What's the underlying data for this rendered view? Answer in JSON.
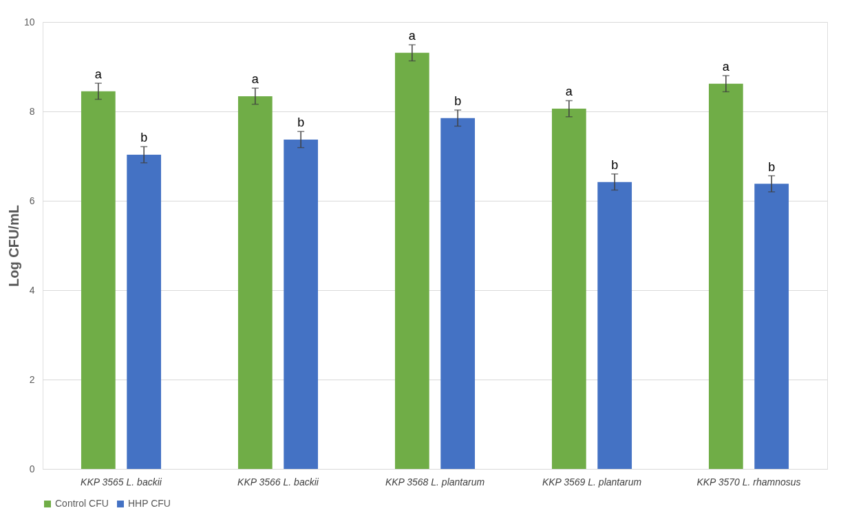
{
  "chart_data": {
    "type": "bar",
    "ylabel": "Log CFU/mL",
    "categories": [
      "KKP 3565  L. backii",
      "KKP 3566 L. backii",
      "KKP 3568 L. plantarum",
      "KKP 3569 L. plantarum",
      "KKP 3570 L. rhamnosus"
    ],
    "series": [
      {
        "name": "Control CFU",
        "color": "#70ad47",
        "values": [
          8.45,
          8.34,
          9.31,
          8.06,
          8.62
        ],
        "errors": [
          0.18,
          0.18,
          0.18,
          0.18,
          0.18
        ],
        "value_labels": [
          "a",
          "a",
          "a",
          "a",
          "a"
        ]
      },
      {
        "name": "HHP CFU",
        "color": "#4472c4",
        "values": [
          7.03,
          7.37,
          7.85,
          6.42,
          6.38
        ],
        "errors": [
          0.18,
          0.18,
          0.18,
          0.18,
          0.18
        ],
        "value_labels": [
          "b",
          "b",
          "b",
          "b",
          "b"
        ]
      }
    ],
    "ylim": [
      0,
      10
    ],
    "yticks": [
      0,
      2,
      4,
      6,
      8,
      10
    ],
    "grid": "y",
    "legend": "bottom"
  }
}
